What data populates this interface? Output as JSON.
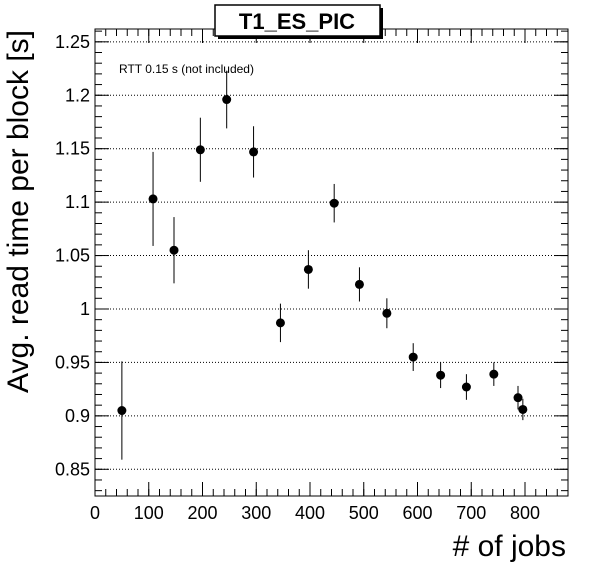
{
  "chart_data": {
    "type": "scatter",
    "title": "T1_ES_PIC",
    "xlabel": "# of jobs",
    "ylabel": "Avg. read time per block [s]",
    "annotation": "RTT 0.15 s (not included)",
    "xlim": [
      0,
      880
    ],
    "ylim": [
      0.825,
      1.262
    ],
    "grid": "horizontal dotted",
    "x_ticks": [
      0,
      100,
      200,
      300,
      400,
      500,
      600,
      700,
      800
    ],
    "x_tick_labels": [
      "0",
      "100",
      "200",
      "300",
      "400",
      "500",
      "600",
      "700",
      "800"
    ],
    "y_ticks": [
      0.85,
      0.9,
      0.95,
      1.0,
      1.05,
      1.1,
      1.15,
      1.2,
      1.25
    ],
    "y_tick_labels": [
      "0.85",
      "0.9",
      "0.95",
      "1",
      "1.05",
      "1.1",
      "1.15",
      "1.2",
      "1.25"
    ],
    "series": [
      {
        "marker_color": "#000000",
        "points": [
          {
            "x": 50,
            "y": 0.905,
            "err": 0.046
          },
          {
            "x": 108,
            "y": 1.103,
            "err": 0.044
          },
          {
            "x": 147,
            "y": 1.055,
            "err": 0.031
          },
          {
            "x": 196,
            "y": 1.149,
            "err": 0.03
          },
          {
            "x": 245,
            "y": 1.196,
            "err": 0.027
          },
          {
            "x": 295,
            "y": 1.147,
            "err": 0.024
          },
          {
            "x": 345,
            "y": 0.987,
            "err": 0.018
          },
          {
            "x": 397,
            "y": 1.037,
            "err": 0.018
          },
          {
            "x": 445,
            "y": 1.099,
            "err": 0.018
          },
          {
            "x": 492,
            "y": 1.023,
            "err": 0.016
          },
          {
            "x": 543,
            "y": 0.996,
            "err": 0.014
          },
          {
            "x": 592,
            "y": 0.955,
            "err": 0.013
          },
          {
            "x": 643,
            "y": 0.938,
            "err": 0.012
          },
          {
            "x": 691,
            "y": 0.927,
            "err": 0.012
          },
          {
            "x": 742,
            "y": 0.939,
            "err": 0.011
          },
          {
            "x": 787,
            "y": 0.917,
            "err": 0.011
          },
          {
            "x": 796,
            "y": 0.906,
            "err": 0.01
          }
        ]
      }
    ]
  }
}
